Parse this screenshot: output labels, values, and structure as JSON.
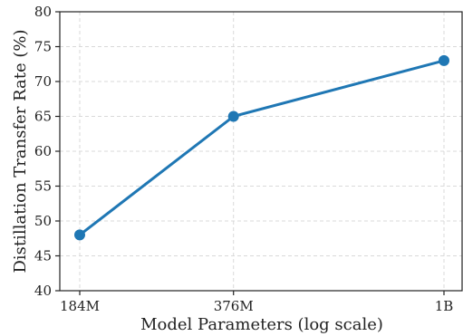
{
  "chart_data": {
    "type": "line",
    "x_scale": "log",
    "grid": true,
    "xlabel": "Model Parameters (log scale)",
    "ylabel": "Distillation Transfer Rate (%)",
    "ylim": [
      40,
      80
    ],
    "yticks": [
      40,
      45,
      50,
      55,
      60,
      65,
      70,
      75,
      80
    ],
    "x_tick_labels": [
      "184M",
      "376M",
      "1B"
    ],
    "x_params": [
      184000000,
      376000000,
      1000000000
    ],
    "series": [
      {
        "values": [
          48,
          65,
          73
        ],
        "color": "#1f77b4"
      }
    ]
  }
}
